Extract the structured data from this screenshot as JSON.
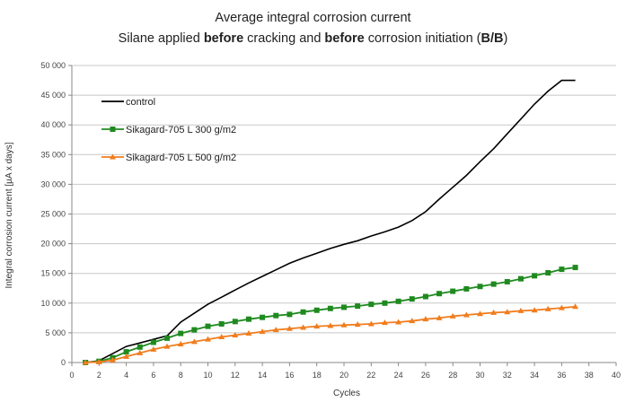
{
  "chart_data": {
    "type": "line",
    "title_line1": "Average integral corrosion current",
    "title_line2": {
      "part1": "Silane applied ",
      "bold1": "before",
      "part2": " cracking and ",
      "bold2": "before",
      "part3": " corrosion initiation (",
      "bold3": "B/B",
      "part4": ")"
    },
    "xlabel": "Cycles",
    "ylabel": "Integral corrosion current  [µA x days]",
    "xlim": [
      0,
      40
    ],
    "ylim": [
      0,
      50000
    ],
    "x_ticks": [
      "0",
      "2",
      "4",
      "6",
      "8",
      "10",
      "12",
      "14",
      "16",
      "18",
      "20",
      "22",
      "24",
      "26",
      "28",
      "30",
      "32",
      "34",
      "36",
      "38",
      "40"
    ],
    "y_ticks": [
      "0",
      "5 000",
      "10 000",
      "15 000",
      "20 000",
      "25 000",
      "30 000",
      "35 000",
      "40 000",
      "45 000",
      "50 000"
    ],
    "grid": "horizontal",
    "legend_position": "top-left",
    "series": [
      {
        "name": "control",
        "color": "#000000",
        "marker": "none",
        "x": [
          1,
          2,
          3,
          4,
          5,
          6,
          7,
          8,
          9,
          10,
          11,
          12,
          13,
          14,
          15,
          16,
          17,
          18,
          19,
          20,
          21,
          22,
          23,
          24,
          25,
          26,
          27,
          28,
          29,
          30,
          31,
          32,
          33,
          34,
          35,
          36,
          37
        ],
        "y": [
          0,
          300,
          1500,
          2700,
          3300,
          3900,
          4500,
          6800,
          8300,
          9800,
          11000,
          12200,
          13400,
          14500,
          15600,
          16700,
          17600,
          18400,
          19200,
          19900,
          20500,
          21300,
          22000,
          22800,
          23900,
          25400,
          27500,
          29500,
          31500,
          33800,
          36000,
          38500,
          41000,
          43500,
          45700,
          47500,
          47500
        ]
      },
      {
        "name": "Sikagard-705 L 300 g/m2",
        "color": "#1f8a1f",
        "marker": "square",
        "x": [
          1,
          2,
          3,
          4,
          5,
          6,
          7,
          8,
          9,
          10,
          11,
          12,
          13,
          14,
          15,
          16,
          17,
          18,
          19,
          20,
          21,
          22,
          23,
          24,
          25,
          26,
          27,
          28,
          29,
          30,
          31,
          32,
          33,
          34,
          35,
          36,
          37
        ],
        "y": [
          0,
          200,
          800,
          1800,
          2600,
          3400,
          4100,
          4900,
          5500,
          6100,
          6500,
          6900,
          7300,
          7600,
          7900,
          8100,
          8500,
          8800,
          9100,
          9300,
          9500,
          9800,
          10000,
          10300,
          10700,
          11100,
          11600,
          12000,
          12400,
          12800,
          13200,
          13600,
          14100,
          14600,
          15100,
          15700,
          16000
        ]
      },
      {
        "name": "Sikagard-705 L 500 g/m2",
        "color": "#f07d1e",
        "marker": "triangle",
        "x": [
          1,
          2,
          3,
          4,
          5,
          6,
          7,
          8,
          9,
          10,
          11,
          12,
          13,
          14,
          15,
          16,
          17,
          18,
          19,
          20,
          21,
          22,
          23,
          24,
          25,
          26,
          27,
          28,
          29,
          30,
          31,
          32,
          33,
          34,
          35,
          36,
          37
        ],
        "y": [
          0,
          100,
          400,
          1000,
          1600,
          2200,
          2700,
          3100,
          3500,
          3900,
          4300,
          4600,
          4900,
          5200,
          5500,
          5700,
          5900,
          6100,
          6200,
          6300,
          6400,
          6500,
          6700,
          6800,
          7000,
          7300,
          7500,
          7800,
          8000,
          8200,
          8400,
          8500,
          8700,
          8800,
          9000,
          9200,
          9400
        ]
      }
    ]
  }
}
